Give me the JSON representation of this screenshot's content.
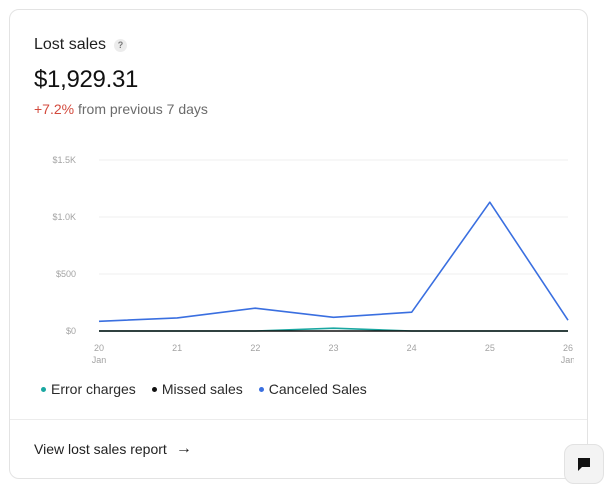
{
  "card": {
    "title": "Lost sales",
    "help_glyph": "?",
    "amount": "$1,929.31",
    "change_pct": "+7.2%",
    "change_text": "from previous 7 days"
  },
  "chart_data": {
    "type": "line",
    "x": [
      "20",
      "21",
      "22",
      "23",
      "24",
      "25",
      "26"
    ],
    "x_sublabels": [
      "Jan",
      "",
      "",
      "",
      "",
      "",
      "Jan"
    ],
    "yticks": [
      "$0",
      "$500",
      "$1.0K",
      "$1.5K"
    ],
    "ytick_values": [
      0,
      500,
      1000,
      1500
    ],
    "ylim": [
      0,
      1500
    ],
    "grid": true,
    "series": [
      {
        "name": "Error charges",
        "color": "#1aa7a1",
        "values": [
          0,
          0,
          0,
          25,
          0,
          0,
          0
        ]
      },
      {
        "name": "Missed sales",
        "color": "#111111",
        "values": [
          0,
          0,
          0,
          0,
          0,
          0,
          0
        ]
      },
      {
        "name": "Canceled Sales",
        "color": "#3a6fe0",
        "values": [
          85,
          115,
          200,
          120,
          165,
          1130,
          95
        ]
      }
    ],
    "legend_position": "bottom-left"
  },
  "footer": {
    "link_label": "View lost sales report",
    "arrow_icon": "arrow-right-icon"
  },
  "chat": {
    "icon": "chat-icon"
  }
}
